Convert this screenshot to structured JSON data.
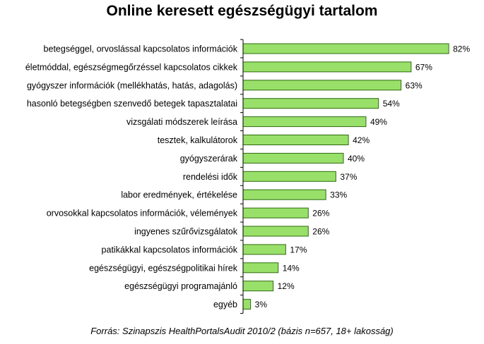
{
  "chart_data": {
    "type": "bar",
    "orientation": "horizontal",
    "title": "Online keresett egészségügyi tartalom",
    "source": "Forrás: Szinapszis HealthPortalsAudit 2010/2 (bázis n=657, 18+ lakosság)",
    "categories": [
      "betegséggel, orvoslással kapcsolatos információk",
      "életmóddal, egészségmegőrzéssel kapcsolatos cikkek",
      "gyógyszer információk (mellékhatás, hatás, adagolás)",
      "hasonló betegségben szenvedő betegek tapasztalatai",
      "vizsgálati módszerek leírása",
      "tesztek, kalkulátorok",
      "gyógyszerárak",
      "rendelési idők",
      "labor eredmények, értékelése",
      "orvosokkal kapcsolatos információk, vélemények",
      "ingyenes szűrővizsgálatok",
      "patikákkal kapcsolatos információk",
      "egészségügyi, egészségpolitikai hírek",
      "egészségügyi programajánló",
      "egyéb"
    ],
    "values": [
      82,
      67,
      63,
      54,
      49,
      42,
      40,
      37,
      33,
      26,
      26,
      17,
      14,
      12,
      3
    ],
    "value_labels": [
      "82%",
      "67%",
      "63%",
      "54%",
      "49%",
      "42%",
      "40%",
      "37%",
      "33%",
      "26%",
      "26%",
      "17%",
      "14%",
      "12%",
      "3%"
    ],
    "xlim": [
      0,
      100
    ],
    "grid": false,
    "legend": "none",
    "colors": {
      "bar_fill": "#99E06A",
      "bar_stroke": "#2E6B0E",
      "axis": "#000000"
    }
  }
}
